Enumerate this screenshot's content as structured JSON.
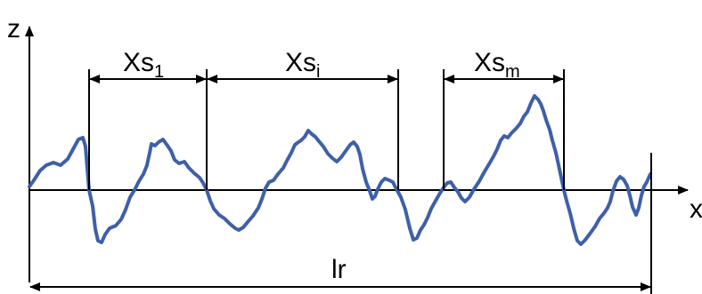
{
  "axes": {
    "z_label": "z",
    "x_label": "x"
  },
  "spans": [
    {
      "base": "Xs",
      "subscript": "1"
    },
    {
      "base": "Xs",
      "subscript": "i"
    },
    {
      "base": "Xs",
      "subscript": "m"
    }
  ],
  "evaluation_length": {
    "label": "lr"
  },
  "colors": {
    "profile": "#3f5fa8",
    "lines": "#000000"
  }
}
